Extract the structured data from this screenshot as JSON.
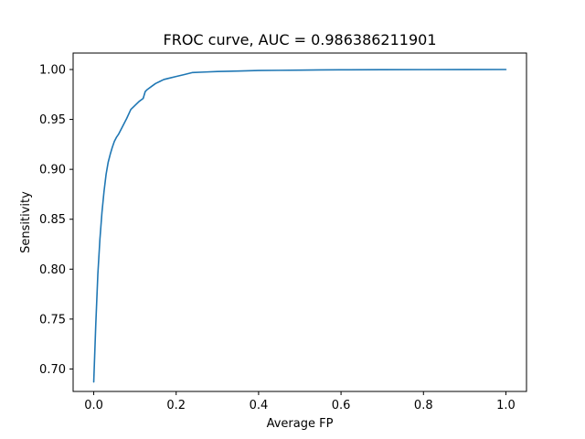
{
  "chart_data": {
    "type": "line",
    "title": "FROC curve, AUC = 0.986386211901",
    "xlabel": "Average FP",
    "ylabel": "Sensitivity",
    "xlim": [
      -0.05,
      1.05
    ],
    "ylim": [
      0.6775,
      1.0165
    ],
    "x_ticks": [
      0.0,
      0.2,
      0.4,
      0.6,
      0.8,
      1.0
    ],
    "x_tick_labels": [
      "0.0",
      "0.2",
      "0.4",
      "0.6",
      "0.8",
      "1.0"
    ],
    "y_ticks": [
      0.7,
      0.75,
      0.8,
      0.85,
      0.9,
      0.95,
      1.0
    ],
    "y_tick_labels": [
      "0.70",
      "0.75",
      "0.80",
      "0.85",
      "0.90",
      "0.95",
      "1.00"
    ],
    "grid": false,
    "series": [
      {
        "color": "#1f77b4",
        "x": [
          0.0,
          0.005,
          0.01,
          0.015,
          0.02,
          0.025,
          0.03,
          0.035,
          0.04,
          0.045,
          0.05,
          0.055,
          0.06,
          0.07,
          0.08,
          0.09,
          0.1,
          0.11,
          0.12,
          0.125,
          0.13,
          0.14,
          0.15,
          0.16,
          0.17,
          0.18,
          0.2,
          0.22,
          0.24,
          0.27,
          0.3,
          0.35,
          0.4,
          0.45,
          0.5,
          0.55,
          0.6,
          0.7,
          0.8,
          0.9,
          1.0
        ],
        "y": [
          0.687,
          0.745,
          0.795,
          0.83,
          0.857,
          0.878,
          0.895,
          0.907,
          0.915,
          0.922,
          0.928,
          0.932,
          0.935,
          0.943,
          0.951,
          0.96,
          0.964,
          0.968,
          0.971,
          0.978,
          0.98,
          0.983,
          0.986,
          0.988,
          0.99,
          0.991,
          0.993,
          0.995,
          0.997,
          0.9975,
          0.998,
          0.9985,
          0.999,
          0.9992,
          0.9994,
          0.9996,
          0.9997,
          0.9998,
          0.9999,
          0.99995,
          1.0
        ]
      }
    ]
  }
}
